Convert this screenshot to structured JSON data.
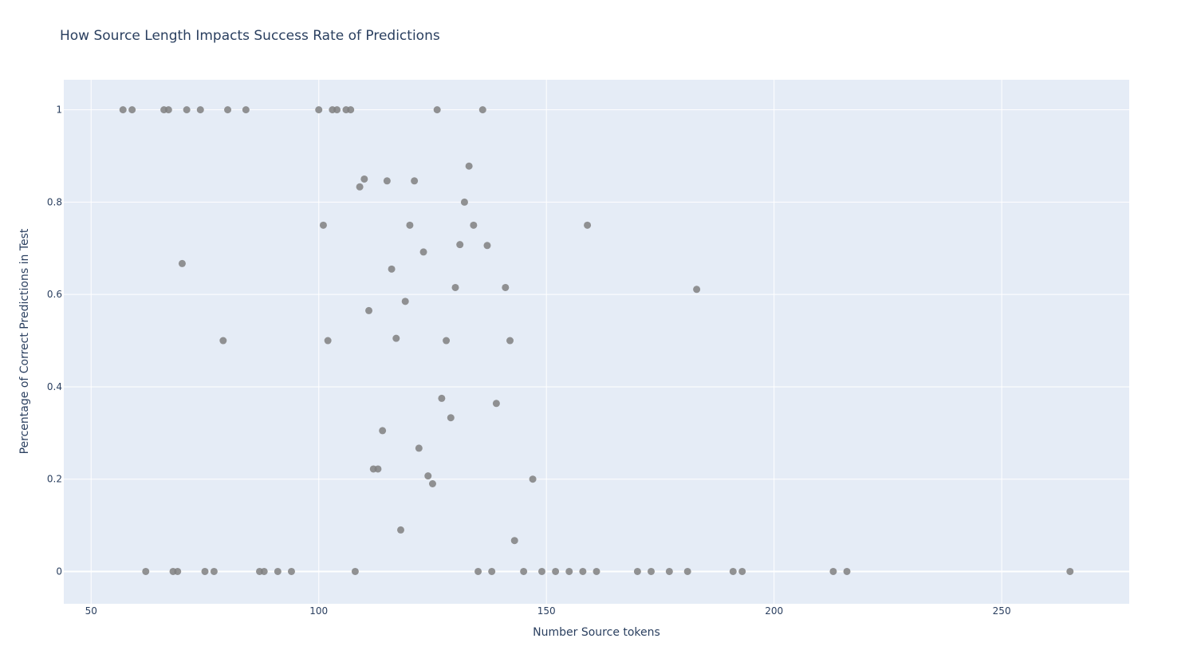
{
  "chart_data": {
    "type": "scatter",
    "title": "How Source Length Impacts Success Rate of Predictions",
    "xlabel": "Number Source tokens",
    "ylabel": "Percentage of Correct Predictions in Test",
    "xlim": [
      44,
      278
    ],
    "ylim": [
      -0.07,
      1.065
    ],
    "xticks": [
      50,
      100,
      150,
      200,
      250
    ],
    "yticks": [
      0,
      0.2,
      0.4,
      0.6,
      0.8,
      1
    ],
    "ytick_labels": [
      "0",
      "0.2",
      "0.4",
      "0.6",
      "0.8",
      "1"
    ],
    "grid": true,
    "legend": "none",
    "colors": {
      "plot_background": "#e5ecf6",
      "marker": "#808080",
      "text": "#2a3f5f",
      "grid": "#ffffff"
    },
    "marker_opacity": 0.85,
    "points": [
      {
        "x": 57,
        "y": 1
      },
      {
        "x": 59,
        "y": 1
      },
      {
        "x": 66,
        "y": 1
      },
      {
        "x": 67,
        "y": 1
      },
      {
        "x": 71,
        "y": 1
      },
      {
        "x": 74,
        "y": 1
      },
      {
        "x": 80,
        "y": 1
      },
      {
        "x": 84,
        "y": 1
      },
      {
        "x": 100,
        "y": 1
      },
      {
        "x": 103,
        "y": 1
      },
      {
        "x": 104,
        "y": 1
      },
      {
        "x": 106,
        "y": 1
      },
      {
        "x": 107,
        "y": 1
      },
      {
        "x": 126,
        "y": 1
      },
      {
        "x": 136,
        "y": 1
      },
      {
        "x": 70,
        "y": 0.667
      },
      {
        "x": 79,
        "y": 0.5
      },
      {
        "x": 101,
        "y": 0.75
      },
      {
        "x": 102,
        "y": 0.5
      },
      {
        "x": 109,
        "y": 0.833
      },
      {
        "x": 110,
        "y": 0.85
      },
      {
        "x": 111,
        "y": 0.565
      },
      {
        "x": 112,
        "y": 0.222
      },
      {
        "x": 113,
        "y": 0.222
      },
      {
        "x": 114,
        "y": 0.305
      },
      {
        "x": 115,
        "y": 0.846
      },
      {
        "x": 116,
        "y": 0.655
      },
      {
        "x": 117,
        "y": 0.505
      },
      {
        "x": 118,
        "y": 0.09
      },
      {
        "x": 119,
        "y": 0.585
      },
      {
        "x": 120,
        "y": 0.75
      },
      {
        "x": 121,
        "y": 0.846
      },
      {
        "x": 122,
        "y": 0.267
      },
      {
        "x": 123,
        "y": 0.692
      },
      {
        "x": 124,
        "y": 0.207
      },
      {
        "x": 125,
        "y": 0.19
      },
      {
        "x": 127,
        "y": 0.375
      },
      {
        "x": 128,
        "y": 0.5
      },
      {
        "x": 129,
        "y": 0.333
      },
      {
        "x": 130,
        "y": 0.615
      },
      {
        "x": 131,
        "y": 0.708
      },
      {
        "x": 132,
        "y": 0.8
      },
      {
        "x": 133,
        "y": 0.878
      },
      {
        "x": 134,
        "y": 0.75
      },
      {
        "x": 137,
        "y": 0.706
      },
      {
        "x": 139,
        "y": 0.364
      },
      {
        "x": 141,
        "y": 0.615
      },
      {
        "x": 142,
        "y": 0.5
      },
      {
        "x": 143,
        "y": 0.067
      },
      {
        "x": 147,
        "y": 0.2
      },
      {
        "x": 159,
        "y": 0.75
      },
      {
        "x": 183,
        "y": 0.611
      },
      {
        "x": 62,
        "y": 0
      },
      {
        "x": 68,
        "y": 0
      },
      {
        "x": 69,
        "y": 0
      },
      {
        "x": 75,
        "y": 0
      },
      {
        "x": 77,
        "y": 0
      },
      {
        "x": 87,
        "y": 0
      },
      {
        "x": 88,
        "y": 0
      },
      {
        "x": 91,
        "y": 0
      },
      {
        "x": 94,
        "y": 0
      },
      {
        "x": 108,
        "y": 0
      },
      {
        "x": 135,
        "y": 0
      },
      {
        "x": 138,
        "y": 0
      },
      {
        "x": 145,
        "y": 0
      },
      {
        "x": 149,
        "y": 0
      },
      {
        "x": 152,
        "y": 0
      },
      {
        "x": 155,
        "y": 0
      },
      {
        "x": 158,
        "y": 0
      },
      {
        "x": 161,
        "y": 0
      },
      {
        "x": 170,
        "y": 0
      },
      {
        "x": 173,
        "y": 0
      },
      {
        "x": 177,
        "y": 0
      },
      {
        "x": 181,
        "y": 0
      },
      {
        "x": 191,
        "y": 0
      },
      {
        "x": 193,
        "y": 0
      },
      {
        "x": 213,
        "y": 0
      },
      {
        "x": 216,
        "y": 0
      },
      {
        "x": 265,
        "y": 0
      }
    ]
  }
}
